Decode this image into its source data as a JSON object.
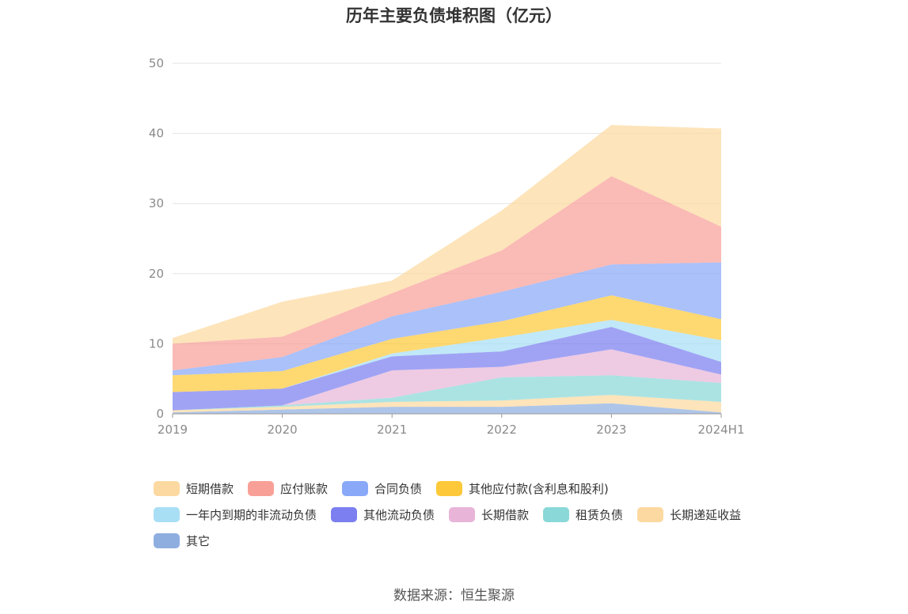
{
  "chart_data": {
    "type": "area",
    "stacked": true,
    "title": "历年主要负债堆积图（亿元）",
    "categories": [
      "2019",
      "2020",
      "2021",
      "2022",
      "2023",
      "2024H1"
    ],
    "yticks": [
      "0",
      "10",
      "20",
      "30",
      "40",
      "50"
    ],
    "ylim": [
      0,
      50
    ],
    "grid": true,
    "legend_position": "bottom",
    "series": [
      {
        "name": "其它",
        "color": "#8eaee0",
        "values": [
          0.2,
          0.6,
          1.0,
          1.0,
          1.5,
          0.2
        ]
      },
      {
        "name": "长期递延收益",
        "color": "#fcd9a0",
        "values": [
          0.3,
          0.4,
          0.7,
          0.9,
          1.2,
          1.5
        ]
      },
      {
        "name": "租赁负债",
        "color": "#8ad8d8",
        "values": [
          0.0,
          0.2,
          0.6,
          3.3,
          2.8,
          2.7
        ]
      },
      {
        "name": "长期借款",
        "color": "#e8b5d8",
        "values": [
          0.0,
          0.0,
          3.9,
          1.5,
          3.7,
          1.2
        ]
      },
      {
        "name": "其他流动负债",
        "color": "#7b7ff0",
        "values": [
          2.6,
          2.4,
          2.0,
          2.2,
          3.2,
          1.8
        ]
      },
      {
        "name": "一年内到期的非流动负债",
        "color": "#a8dff5",
        "values": [
          0.0,
          0.0,
          0.4,
          2.0,
          1.0,
          3.1
        ]
      },
      {
        "name": "其他应付款(含利息和股利)",
        "color": "#fdc93a",
        "values": [
          2.4,
          2.5,
          2.1,
          2.3,
          3.5,
          3.0
        ]
      },
      {
        "name": "合同负债",
        "color": "#89a9f8",
        "values": [
          0.7,
          2.0,
          3.2,
          4.2,
          4.4,
          8.1
        ]
      },
      {
        "name": "应付账款",
        "color": "#f8a098",
        "values": [
          3.8,
          2.9,
          3.3,
          5.9,
          12.6,
          5.1
        ]
      },
      {
        "name": "短期借款",
        "color": "#fcd9a0",
        "values": [
          0.8,
          5.0,
          1.8,
          5.7,
          7.3,
          14.0
        ]
      }
    ]
  },
  "legend": {
    "items": [
      {
        "label": "短期借款",
        "color": "#fcd9a0"
      },
      {
        "label": "应付账款",
        "color": "#f8a098"
      },
      {
        "label": "合同负债",
        "color": "#89a9f8"
      },
      {
        "label": "其他应付款(含利息和股利)",
        "color": "#fdc93a"
      },
      {
        "label": "一年内到期的非流动负债",
        "color": "#a8dff5"
      },
      {
        "label": "其他流动负债",
        "color": "#7b7ff0"
      },
      {
        "label": "长期借款",
        "color": "#e8b5d8"
      },
      {
        "label": "租赁负债",
        "color": "#8ad8d8"
      },
      {
        "label": "长期递延收益",
        "color": "#fcd9a0"
      },
      {
        "label": "其它",
        "color": "#8eaee0"
      }
    ]
  },
  "source": "数据来源：恒生聚源"
}
